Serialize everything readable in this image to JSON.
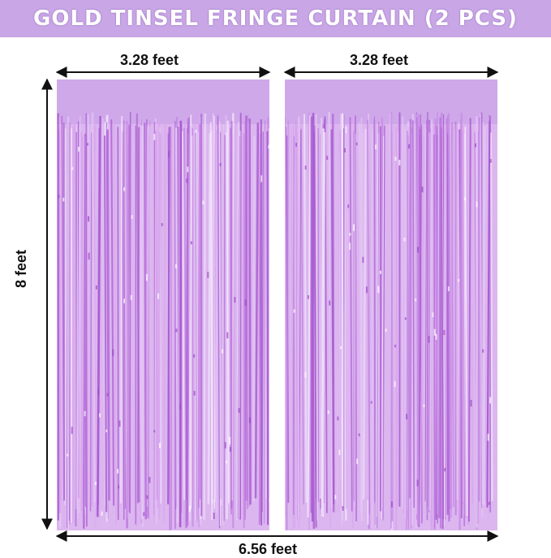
{
  "banner": {
    "title": "GOLD TINSEL FRINGE CURTAIN (2 PCS)",
    "background": "#c9a7e6"
  },
  "dimensions": {
    "left_width": "3.28 feet",
    "right_width": "3.28 feet",
    "total_width": "6.56 feet",
    "height": "8 feet"
  },
  "curtain": {
    "colors": [
      "#e3c8f5",
      "#c98ee6",
      "#b46ad9",
      "#f2e4fb",
      "#d9a6ee",
      "#a85cd0"
    ]
  }
}
